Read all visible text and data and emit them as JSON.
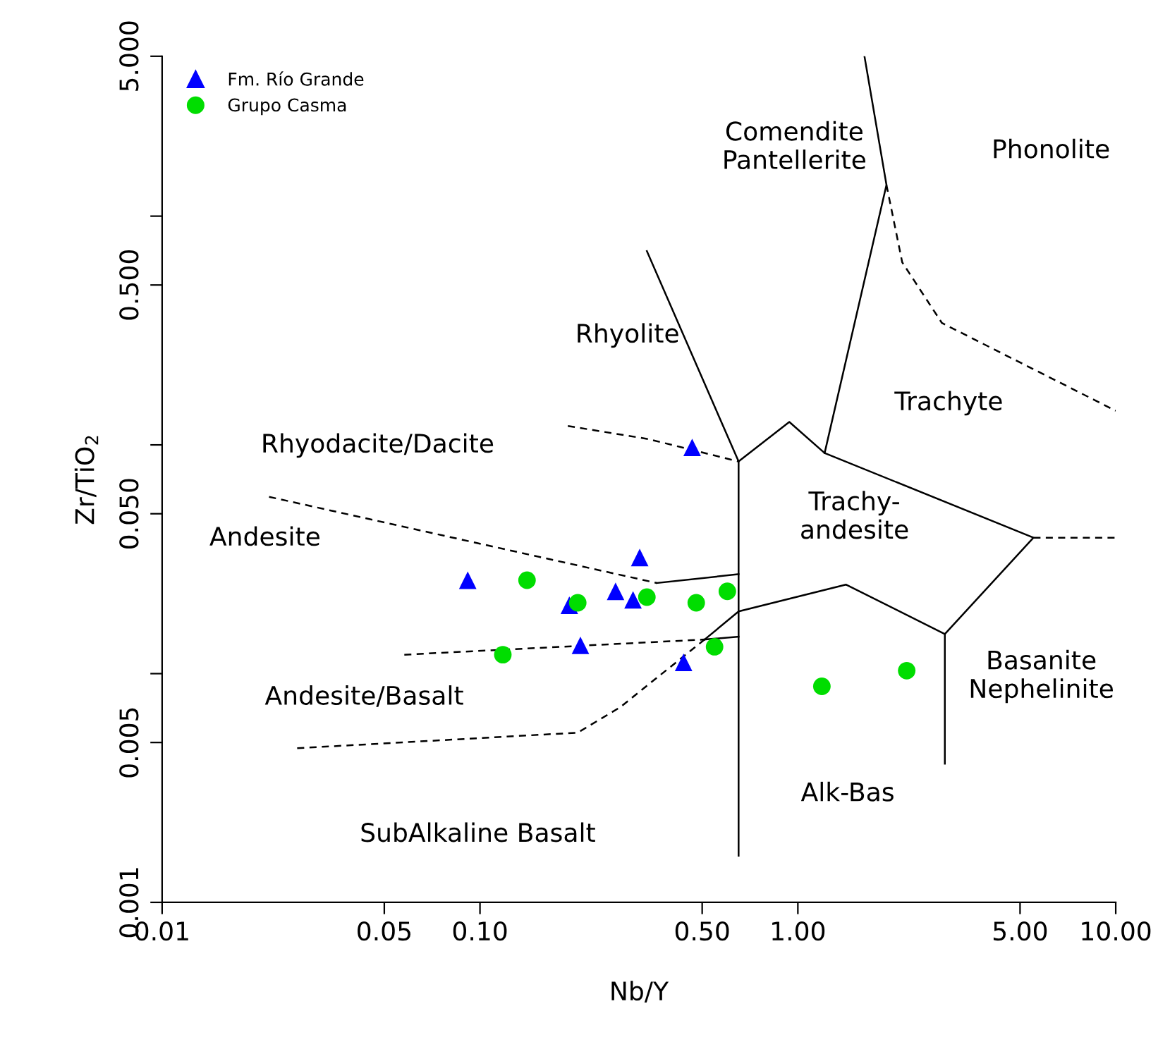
{
  "chart_data": {
    "type": "scatter",
    "xlabel": "Nb/Y",
    "ylabel": "Zr/TiO$_{2}$",
    "log": "xy",
    "grid": false,
    "legend": "top left",
    "xlim": [
      0.01,
      10
    ],
    "ylim": [
      0.001,
      5
    ],
    "xticks": [
      {
        "value": 0.01,
        "label": "0.01"
      },
      {
        "value": 0.05,
        "label": "0.05"
      },
      {
        "value": 0.1,
        "label": "0.10"
      },
      {
        "value": 0.5,
        "label": "0.50"
      },
      {
        "value": 1,
        "label": "1.00"
      },
      {
        "value": 5,
        "label": "5.00"
      },
      {
        "value": 10,
        "label": "10.00"
      }
    ],
    "yticks": [
      {
        "value": 0.001,
        "label": "0.001"
      },
      {
        "value": 0.005,
        "label": "0.005"
      },
      {
        "value": 0.01,
        "label": null
      },
      {
        "value": 0.05,
        "label": "0.050"
      },
      {
        "value": 0.1,
        "label": null
      },
      {
        "value": 0.5,
        "label": "0.500"
      },
      {
        "value": 1,
        "label": null
      },
      {
        "value": 5,
        "label": "5.000"
      }
    ],
    "series": [
      {
        "name": "Fm. Río Grande",
        "marker": "triangle",
        "color": "#0000ff",
        "x": [
          0.0915,
          0.191,
          0.267,
          0.303,
          0.318,
          0.207,
          0.437,
          0.465
        ],
        "values": [
          0.0256,
          0.0199,
          0.0229,
          0.021,
          0.0322,
          0.0133,
          0.0112,
          0.0975
        ]
      },
      {
        "name": "Grupo Casma",
        "marker": "circle",
        "color": "#00dd00",
        "x": [
          0.1406,
          0.203,
          0.335,
          0.6,
          0.118,
          0.479,
          0.547,
          1.19,
          2.2
        ],
        "values": [
          0.0256,
          0.0204,
          0.0216,
          0.0229,
          0.0121,
          0.0204,
          0.0131,
          0.0088,
          0.0103
        ]
      },
      {
        "type": "line",
        "marker": "none",
        "line_style": "solid",
        "color": "#000000",
        "x": [
          0.335,
          0.651,
          0.94,
          1.214,
          5.51,
          2.9,
          1.416,
          0.651,
          0.509
        ],
        "values": [
          0.703,
          0.0846,
          0.126,
          0.0921,
          0.0393,
          0.0149,
          0.0245,
          0.0187,
          0.0141
        ]
      },
      {
        "type": "line",
        "marker": "none",
        "line_style": "dashed",
        "color": "#000000",
        "x": [
          5.51,
          10
        ],
        "values": [
          0.0393,
          0.0393
        ]
      },
      {
        "type": "line",
        "marker": "none",
        "line_style": "solid",
        "color": "#000000",
        "x": [
          1.214,
          1.9,
          1.62
        ],
        "values": [
          0.0921,
          1.37,
          5
        ]
      },
      {
        "type": "line",
        "marker": "none",
        "line_style": "dashed",
        "color": "#000000",
        "x": [
          1.9,
          2.13,
          2.84,
          10
        ],
        "values": [
          1.37,
          0.628,
          0.341,
          0.141
        ]
      },
      {
        "type": "line",
        "marker": "none",
        "line_style": "solid",
        "color": "#000000",
        "x": [
          0.651,
          0.651
        ],
        "values": [
          0.0846,
          0.0016
        ]
      },
      {
        "type": "line",
        "marker": "none",
        "line_style": "solid",
        "color": "#000000",
        "x": [
          0.36,
          0.651
        ],
        "values": [
          0.0249,
          0.0272
        ]
      },
      {
        "type": "line",
        "marker": "none",
        "line_style": "solid",
        "color": "#000000",
        "x": [
          2.9,
          2.9
        ],
        "values": [
          0.0149,
          0.00404
        ]
      },
      {
        "type": "line",
        "marker": "none",
        "line_style": "dashed",
        "color": "#000000",
        "x": [
          0.189,
          0.339,
          0.651
        ],
        "values": [
          0.121,
          0.106,
          0.0846
        ]
      },
      {
        "type": "line",
        "marker": "none",
        "line_style": "dashed",
        "color": "#000000",
        "x": [
          0.0217,
          0.36
        ],
        "values": [
          0.0593,
          0.0249
        ]
      },
      {
        "type": "line",
        "marker": "none",
        "line_style": "dashed",
        "color": "#000000",
        "x": [
          0.0578,
          0.509
        ],
        "values": [
          0.0121,
          0.0141
        ]
      },
      {
        "type": "line",
        "marker": "none",
        "line_style": "solid",
        "color": "#000000",
        "x": [
          0.509,
          0.651
        ],
        "values": [
          0.0141,
          0.0145
        ]
      },
      {
        "type": "line",
        "marker": "none",
        "line_style": "dashed",
        "color": "#000000",
        "x": [
          0.0266,
          0.203,
          0.276,
          0.509
        ],
        "values": [
          0.00472,
          0.00552,
          0.00713,
          0.0141
        ]
      }
    ],
    "annotations": [
      "Comendite\nPantellerite",
      "Phonolite",
      "Rhyolite",
      "Trachyte",
      "Rhyodacite/Dacite",
      "Trachy-\nandesite",
      "Andesite",
      "Andesite/Basalt",
      "Basanite\nNephelinite",
      "Alk-Bas",
      "SubAlkaline Basalt"
    ]
  }
}
